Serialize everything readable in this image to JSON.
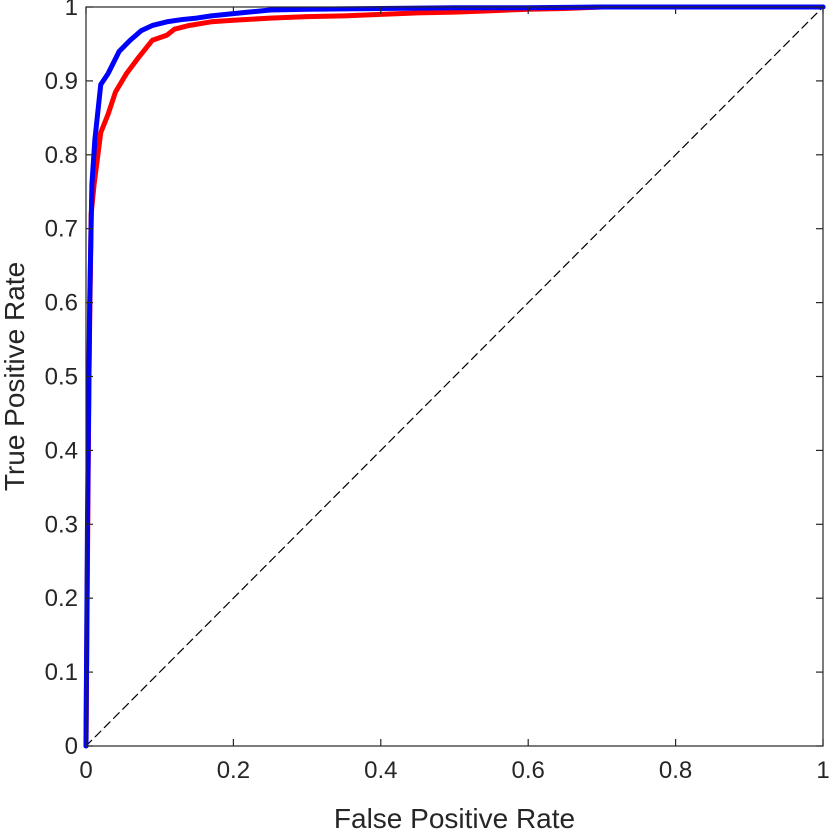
{
  "chart_data": {
    "type": "line",
    "title": "",
    "xlabel": "False Positive Rate",
    "ylabel": "True Positive Rate",
    "xlim": [
      0,
      1
    ],
    "ylim": [
      0,
      1
    ],
    "xticks": [
      "0",
      "0.2",
      "0.4",
      "0.6",
      "0.8",
      "1"
    ],
    "yticks": [
      "0",
      "0.1",
      "0.2",
      "0.3",
      "0.4",
      "0.5",
      "0.6",
      "0.7",
      "0.8",
      "0.9",
      "1"
    ],
    "grid": false,
    "legend": "none",
    "series": [
      {
        "color": "#0000ff",
        "style": "solid",
        "x": [
          0,
          0.002,
          0.005,
          0.008,
          0.012,
          0.02,
          0.03,
          0.045,
          0.06,
          0.075,
          0.09,
          0.11,
          0.13,
          0.15,
          0.17,
          0.19,
          0.22,
          0.25,
          0.3,
          0.4,
          0.5,
          0.6,
          0.7,
          0.8,
          0.9,
          1.0
        ],
        "y": [
          0,
          0.3,
          0.6,
          0.76,
          0.82,
          0.895,
          0.91,
          0.94,
          0.955,
          0.968,
          0.975,
          0.98,
          0.983,
          0.985,
          0.988,
          0.99,
          0.993,
          0.996,
          0.997,
          0.998,
          0.999,
          0.999,
          1.0,
          1.0,
          1.0,
          1.0
        ]
      },
      {
        "color": "#ff0000",
        "style": "solid",
        "x": [
          0,
          0.002,
          0.004,
          0.007,
          0.011,
          0.02,
          0.03,
          0.04,
          0.055,
          0.07,
          0.09,
          0.11,
          0.12,
          0.14,
          0.17,
          0.2,
          0.25,
          0.3,
          0.35,
          0.4,
          0.45,
          0.5,
          0.55,
          0.6,
          0.65,
          0.7,
          0.8,
          0.9,
          1.0
        ],
        "y": [
          0,
          0.25,
          0.5,
          0.72,
          0.76,
          0.83,
          0.855,
          0.885,
          0.91,
          0.93,
          0.955,
          0.962,
          0.97,
          0.975,
          0.98,
          0.982,
          0.985,
          0.987,
          0.988,
          0.99,
          0.992,
          0.993,
          0.995,
          0.997,
          0.998,
          1.0,
          1.0,
          1.0,
          1.0
        ]
      },
      {
        "color": "#000000",
        "style": "dashed",
        "x": [
          0,
          1
        ],
        "y": [
          0,
          1
        ]
      }
    ]
  }
}
